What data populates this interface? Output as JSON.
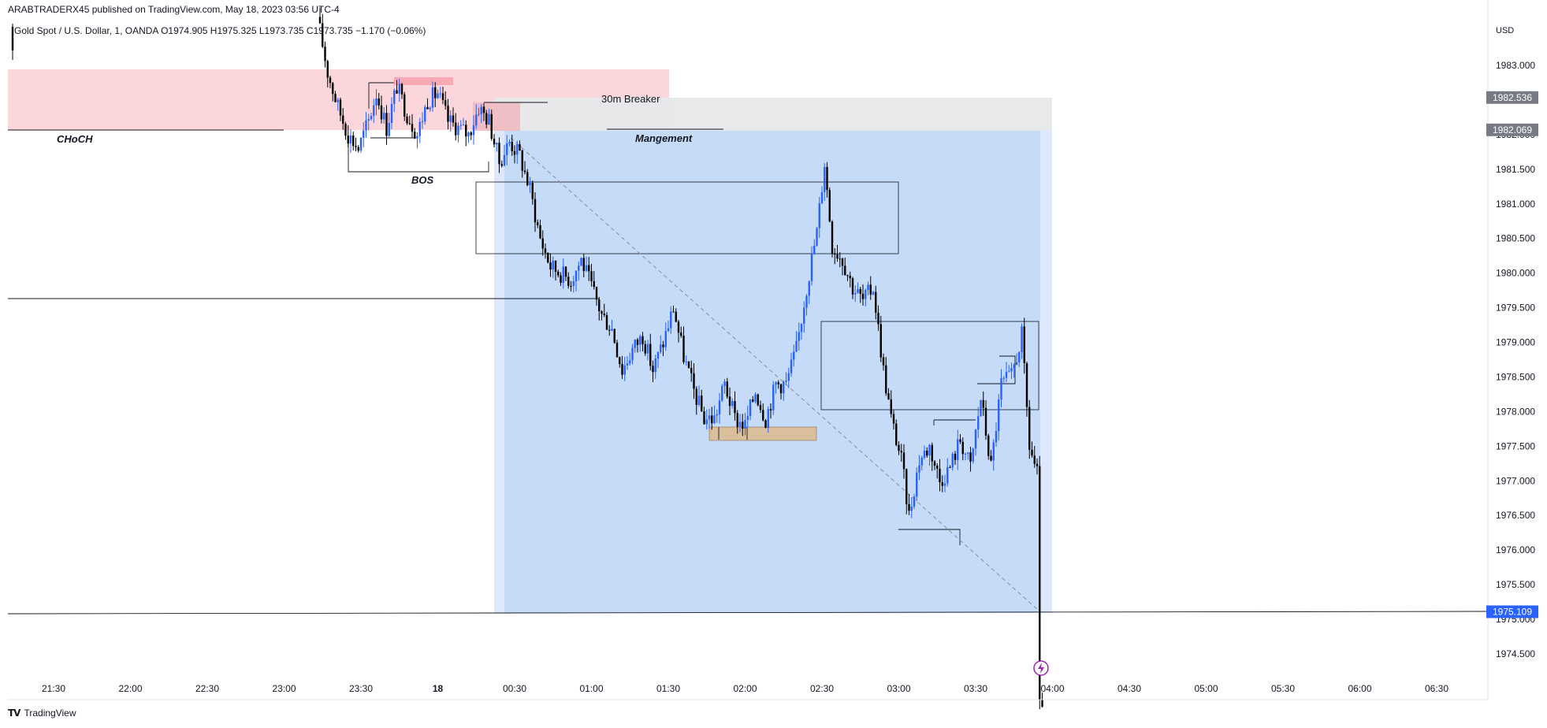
{
  "header": {
    "published": "ARABTRADERX45 published on TradingView.com, May 18, 2023 03:56 UTC-4",
    "symbol_line": "Gold Spot / U.S. Dollar, 1, OANDA  O1974.905  H1975.325  L1973.735  C1973.735  −1.170 (−0.06%)",
    "currency": "USD"
  },
  "footer": {
    "logo_mark": "TV",
    "brand": "TradingView"
  },
  "colors": {
    "up": "#2962ff",
    "down": "#000000",
    "supply_zone": "#fbd6da",
    "breaker_zone": "#e7e8ea",
    "position_zone": "#c5dbf8",
    "position_edge": "#dde9fa",
    "demand_box": "#d9bf9c"
  },
  "chart_data": {
    "type": "candlestick",
    "symbol": "Gold Spot / U.S. Dollar",
    "timeframe": "1",
    "broker": "OANDA",
    "ohlc_last": {
      "open": 1974.905,
      "high": 1975.325,
      "low": 1973.735,
      "close": 1973.735,
      "change": -1.17,
      "change_pct": -0.06
    },
    "y_axis": {
      "ticks": [
        "1983.000",
        "1982.500",
        "1982.000",
        "1981.500",
        "1981.000",
        "1980.500",
        "1980.000",
        "1979.500",
        "1979.000",
        "1978.500",
        "1978.000",
        "1977.500",
        "1977.000",
        "1976.500",
        "1976.000",
        "1975.500",
        "1975.000",
        "1974.500"
      ],
      "ylim": [
        1974.2,
        1983.6
      ]
    },
    "x_axis": {
      "ticks": [
        "21:30",
        "22:00",
        "22:30",
        "23:00",
        "23:30",
        "18",
        "00:30",
        "01:00",
        "01:30",
        "02:00",
        "02:30",
        "03:00",
        "03:30",
        "04:00",
        "04:30",
        "05:00",
        "05:30",
        "06:00",
        "06:30"
      ],
      "bold_tick": "18"
    },
    "price_labels": [
      {
        "value": 1982.536,
        "text": "1982.536"
      },
      {
        "value": 1982.069,
        "text": "1982.069"
      },
      {
        "value": 1975.109,
        "text": "1975.109"
      }
    ],
    "annotations": {
      "choch": "CHoCH",
      "bos": "BOS",
      "breaker": "30m Breaker",
      "management": "Mangement"
    },
    "horizontal_lines": [
      1982.069,
      1979.6,
      1975.109
    ],
    "series_waypoints": [
      {
        "t": "23:14",
        "p": 1983.7
      },
      {
        "t": "23:18",
        "p": 1982.9
      },
      {
        "t": "23:22",
        "p": 1982.4
      },
      {
        "t": "23:26",
        "p": 1982.0
      },
      {
        "t": "23:30",
        "p": 1981.8
      },
      {
        "t": "23:34",
        "p": 1982.2
      },
      {
        "t": "23:37",
        "p": 1982.6
      },
      {
        "t": "23:41",
        "p": 1982.1
      },
      {
        "t": "23:45",
        "p": 1982.7
      },
      {
        "t": "23:49",
        "p": 1982.3
      },
      {
        "t": "23:53",
        "p": 1982.0
      },
      {
        "t": "23:57",
        "p": 1982.5
      },
      {
        "t": "00:01",
        "p": 1982.6
      },
      {
        "t": "00:05",
        "p": 1982.2
      },
      {
        "t": "00:09",
        "p": 1982.1
      },
      {
        "t": "00:13",
        "p": 1982.0
      },
      {
        "t": "00:17",
        "p": 1982.4
      },
      {
        "t": "00:21",
        "p": 1982.2
      },
      {
        "t": "00:25",
        "p": 1981.6
      },
      {
        "t": "00:29",
        "p": 1981.9
      },
      {
        "t": "00:33",
        "p": 1981.7
      },
      {
        "t": "00:37",
        "p": 1981.2
      },
      {
        "t": "00:41",
        "p": 1980.5
      },
      {
        "t": "00:45",
        "p": 1980.1
      },
      {
        "t": "00:49",
        "p": 1980.0
      },
      {
        "t": "00:53",
        "p": 1979.9
      },
      {
        "t": "00:57",
        "p": 1980.2
      },
      {
        "t": "01:01",
        "p": 1979.8
      },
      {
        "t": "01:05",
        "p": 1979.4
      },
      {
        "t": "01:09",
        "p": 1979.2
      },
      {
        "t": "01:13",
        "p": 1978.6
      },
      {
        "t": "01:17",
        "p": 1978.9
      },
      {
        "t": "01:21",
        "p": 1979.1
      },
      {
        "t": "01:25",
        "p": 1978.6
      },
      {
        "t": "01:29",
        "p": 1979.0
      },
      {
        "t": "01:33",
        "p": 1979.5
      },
      {
        "t": "01:37",
        "p": 1978.8
      },
      {
        "t": "01:41",
        "p": 1978.3
      },
      {
        "t": "01:45",
        "p": 1977.9
      },
      {
        "t": "01:49",
        "p": 1977.9
      },
      {
        "t": "01:53",
        "p": 1978.4
      },
      {
        "t": "01:57",
        "p": 1977.9
      },
      {
        "t": "02:01",
        "p": 1977.8
      },
      {
        "t": "02:05",
        "p": 1978.3
      },
      {
        "t": "02:09",
        "p": 1977.9
      },
      {
        "t": "02:13",
        "p": 1978.4
      },
      {
        "t": "02:17",
        "p": 1978.4
      },
      {
        "t": "02:21",
        "p": 1978.9
      },
      {
        "t": "02:25",
        "p": 1979.8
      },
      {
        "t": "02:29",
        "p": 1980.6
      },
      {
        "t": "02:32",
        "p": 1981.6
      },
      {
        "t": "02:35",
        "p": 1980.4
      },
      {
        "t": "02:39",
        "p": 1980.2
      },
      {
        "t": "02:43",
        "p": 1979.8
      },
      {
        "t": "02:47",
        "p": 1979.6
      },
      {
        "t": "02:51",
        "p": 1979.8
      },
      {
        "t": "02:55",
        "p": 1978.6
      },
      {
        "t": "02:58",
        "p": 1977.9
      },
      {
        "t": "03:02",
        "p": 1977.3
      },
      {
        "t": "03:05",
        "p": 1976.5
      },
      {
        "t": "03:09",
        "p": 1977.3
      },
      {
        "t": "03:13",
        "p": 1977.5
      },
      {
        "t": "03:17",
        "p": 1977.0
      },
      {
        "t": "03:21",
        "p": 1977.2
      },
      {
        "t": "03:25",
        "p": 1977.6
      },
      {
        "t": "03:29",
        "p": 1977.2
      },
      {
        "t": "03:33",
        "p": 1978.2
      },
      {
        "t": "03:37",
        "p": 1977.2
      },
      {
        "t": "03:41",
        "p": 1978.4
      },
      {
        "t": "03:45",
        "p": 1978.5
      },
      {
        "t": "03:49",
        "p": 1979.1
      },
      {
        "t": "03:52",
        "p": 1977.5
      },
      {
        "t": "03:55",
        "p": 1977.1
      },
      {
        "t": "03:56",
        "p": 1973.7
      }
    ],
    "legend": "none",
    "grid": false
  }
}
